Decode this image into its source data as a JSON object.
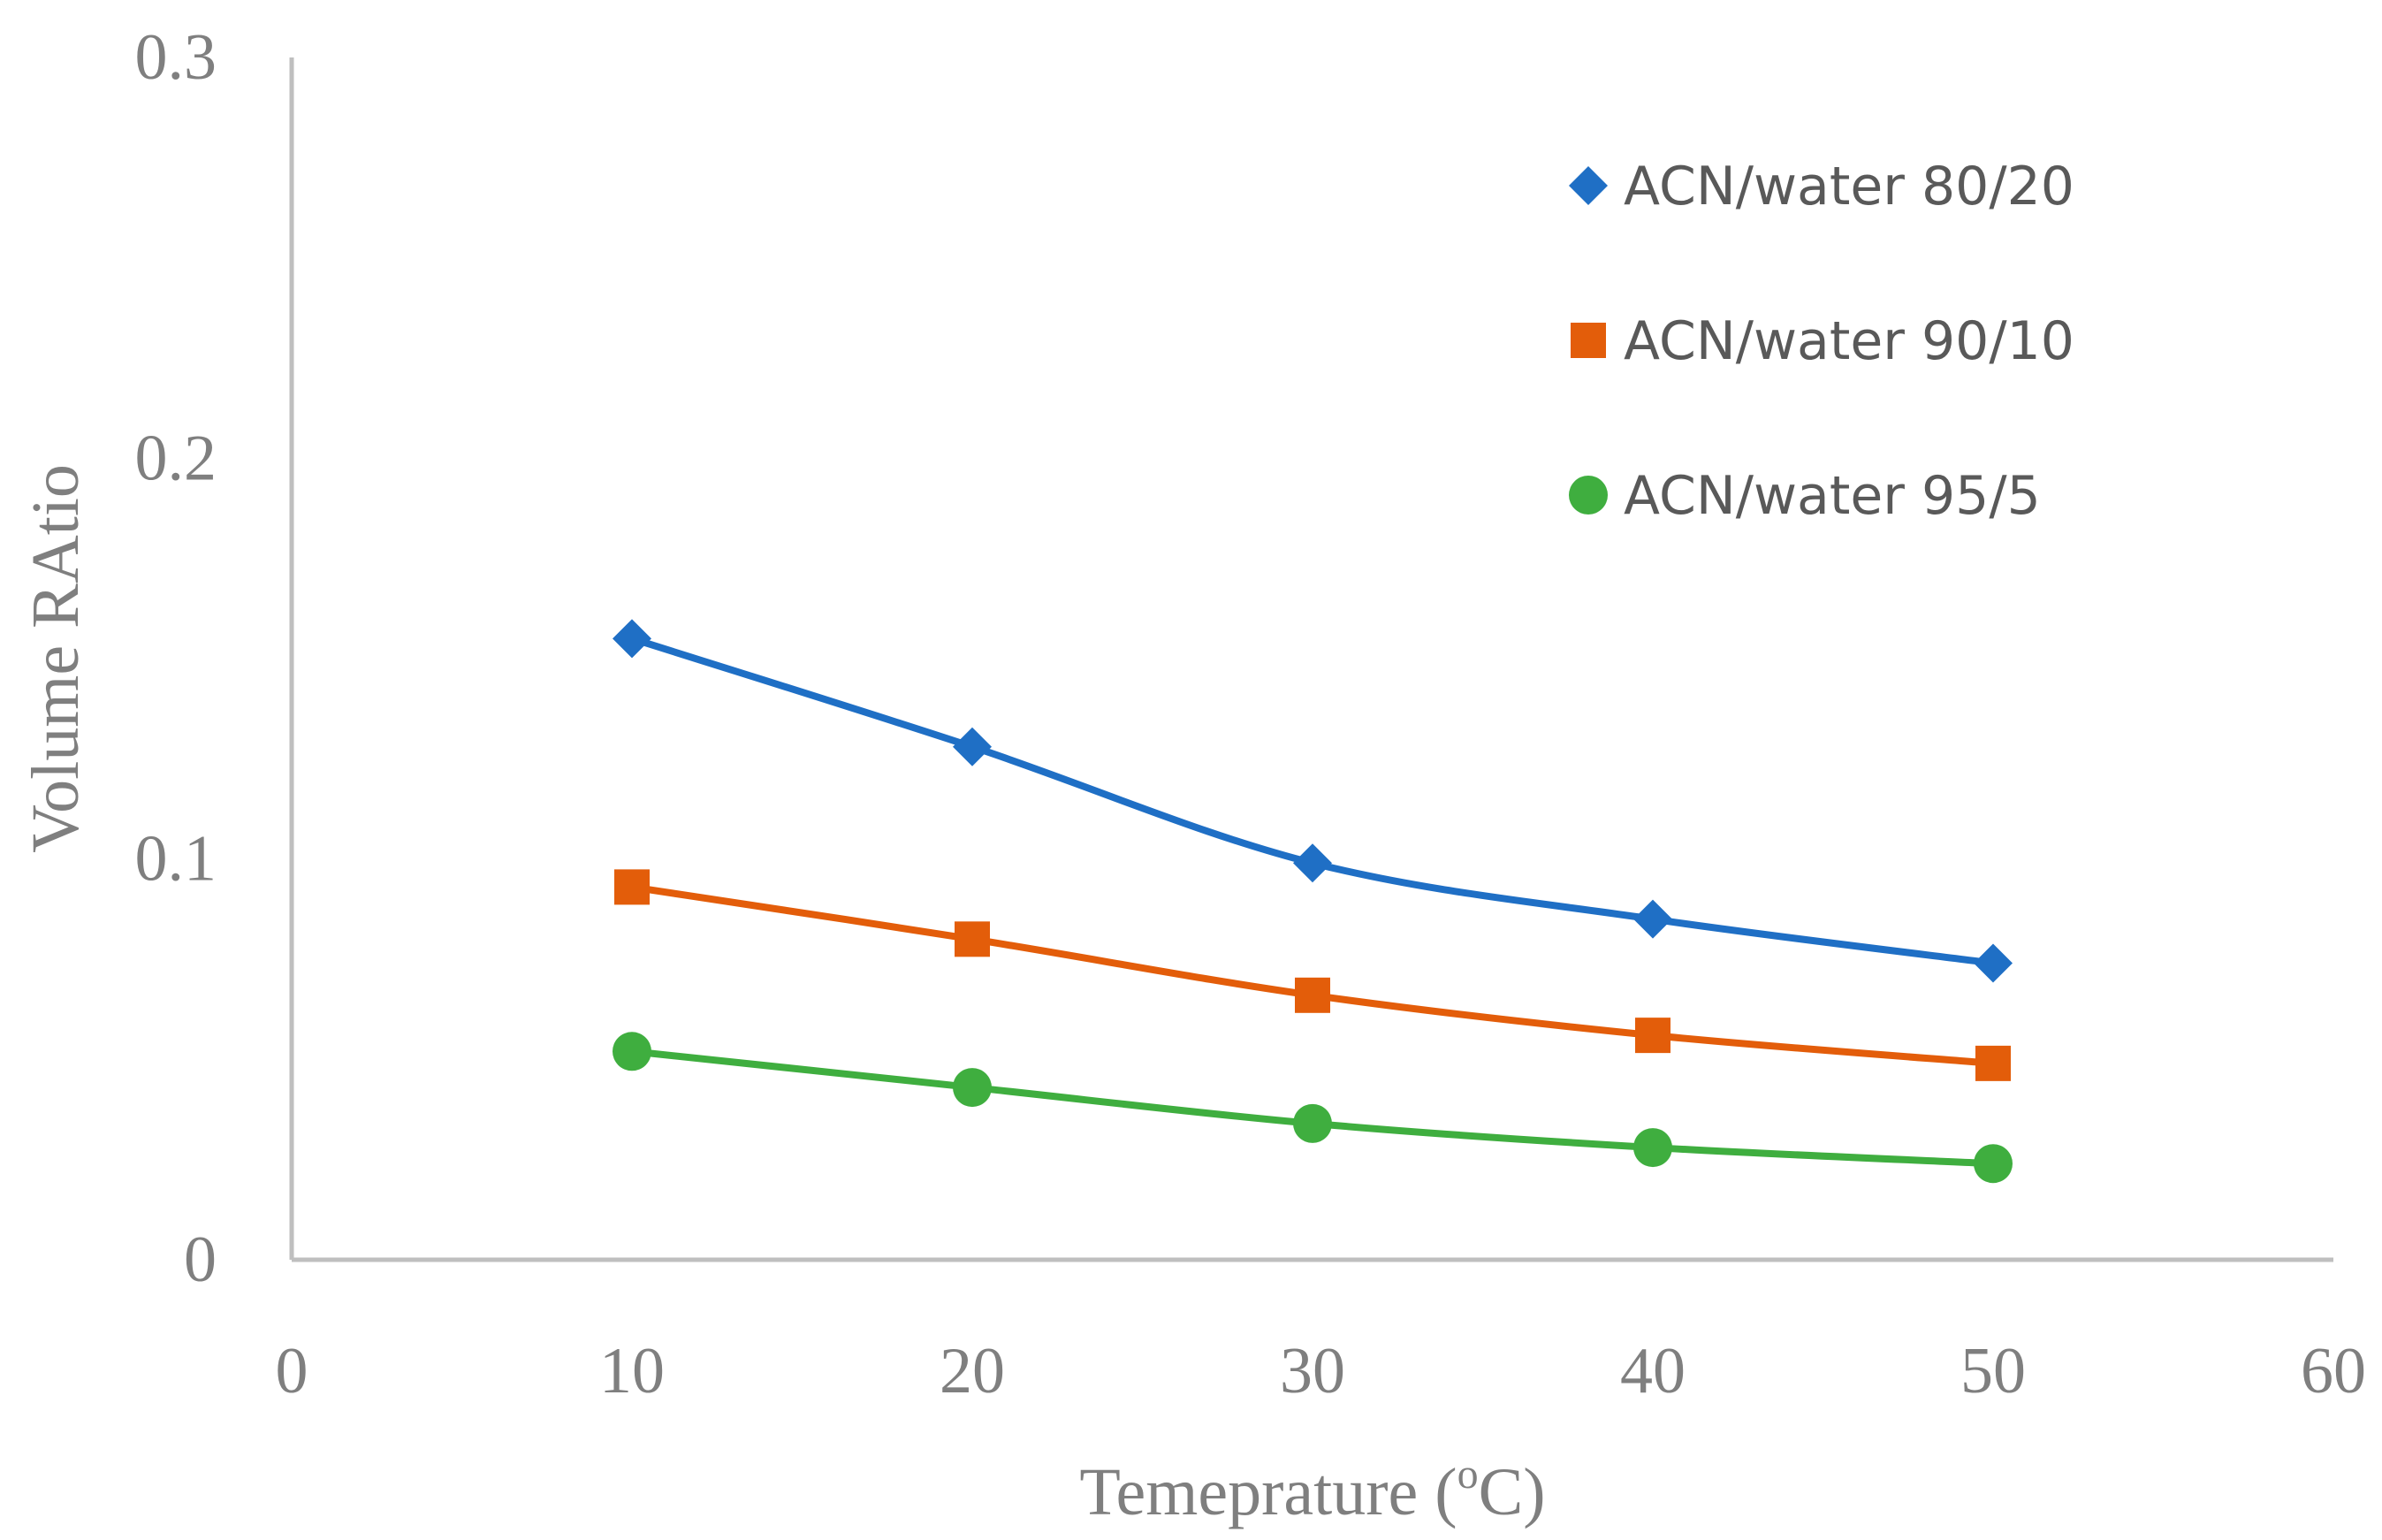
{
  "chart_data": {
    "type": "line",
    "title": "",
    "xlabel": "Temeprature (oC)",
    "xlabel_parts": {
      "main": "Temeprature (",
      "superscript": "o",
      "unit": "C)"
    },
    "ylabel": "Volume RAtio",
    "xlim": [
      0,
      60
    ],
    "ylim": [
      0,
      0.3
    ],
    "x_ticks": [
      "0",
      "10",
      "20",
      "30",
      "40",
      "50",
      "60"
    ],
    "y_ticks": [
      "0",
      "0.1",
      "0.2",
      "0.3"
    ],
    "x_tick_values": [
      0,
      10,
      20,
      30,
      40,
      50,
      60
    ],
    "y_tick_values": [
      0,
      0.1,
      0.2,
      0.3
    ],
    "grid": false,
    "legend_position": "top-right",
    "series": [
      {
        "name": "ACN/water 80/20",
        "color": "#1f6fc5",
        "marker": "diamond",
        "x": [
          10,
          20,
          30,
          40,
          50
        ],
        "values": [
          0.155,
          0.128,
          0.099,
          0.085,
          0.074
        ]
      },
      {
        "name": "ACN/water 90/10",
        "color": "#e35d0a",
        "marker": "square",
        "x": [
          10,
          20,
          30,
          40,
          50
        ],
        "values": [
          0.093,
          0.08,
          0.066,
          0.056,
          0.049
        ]
      },
      {
        "name": "ACN/water 95/5",
        "color": "#3fae3f",
        "marker": "circle",
        "x": [
          10,
          20,
          30,
          40,
          50
        ],
        "values": [
          0.052,
          0.043,
          0.034,
          0.028,
          0.024
        ]
      }
    ]
  }
}
